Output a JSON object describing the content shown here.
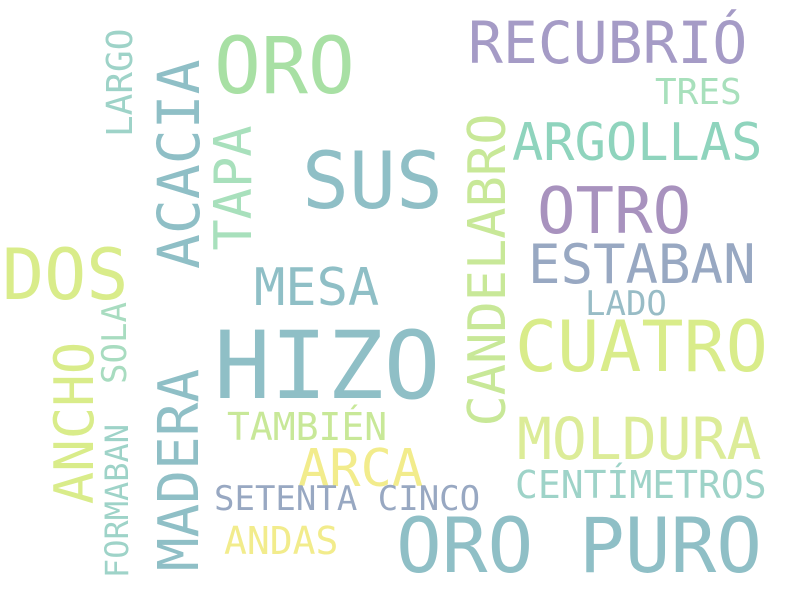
{
  "words": {
    "oro": "ORO",
    "recubrio": "RECUBRIÓ",
    "tres": "TRES",
    "argollas": "ARGOLLAS",
    "sus": "SUS",
    "otro": "OTRO",
    "estaban": "ESTABAN",
    "lado": "LADO",
    "dos": "DOS",
    "mesa": "MESA",
    "hizo": "HIZO",
    "cuatro": "CUATRO",
    "tambien": "TAMBIÉN",
    "moldura": "MOLDURA",
    "arca": "ARCA",
    "centimetros": "CENTÍMETROS",
    "setenta_cinco": "SETENTA CINCO",
    "andas": "ANDAS",
    "oro_puro": "ORO PURO",
    "largo": "LARGO",
    "acacia": "ACACIA",
    "tapa": "TAPA",
    "candelabro": "CANDELABRO",
    "ancho": "ANCHO",
    "sola": "SOLA",
    "madera": "MADERA",
    "formaban": "FORMABAN"
  },
  "colors": {
    "light_green": "#a8e0a4",
    "lavender": "#a59bc6",
    "mint": "#8fd4bd",
    "teal": "#8fbfc6",
    "purple": "#a892be",
    "slate": "#98a8c2",
    "yellow_green": "#d9ec8a",
    "pale_green": "#c8e898",
    "yellow": "#f2ec8c",
    "light_teal": "#9ed3c8"
  }
}
